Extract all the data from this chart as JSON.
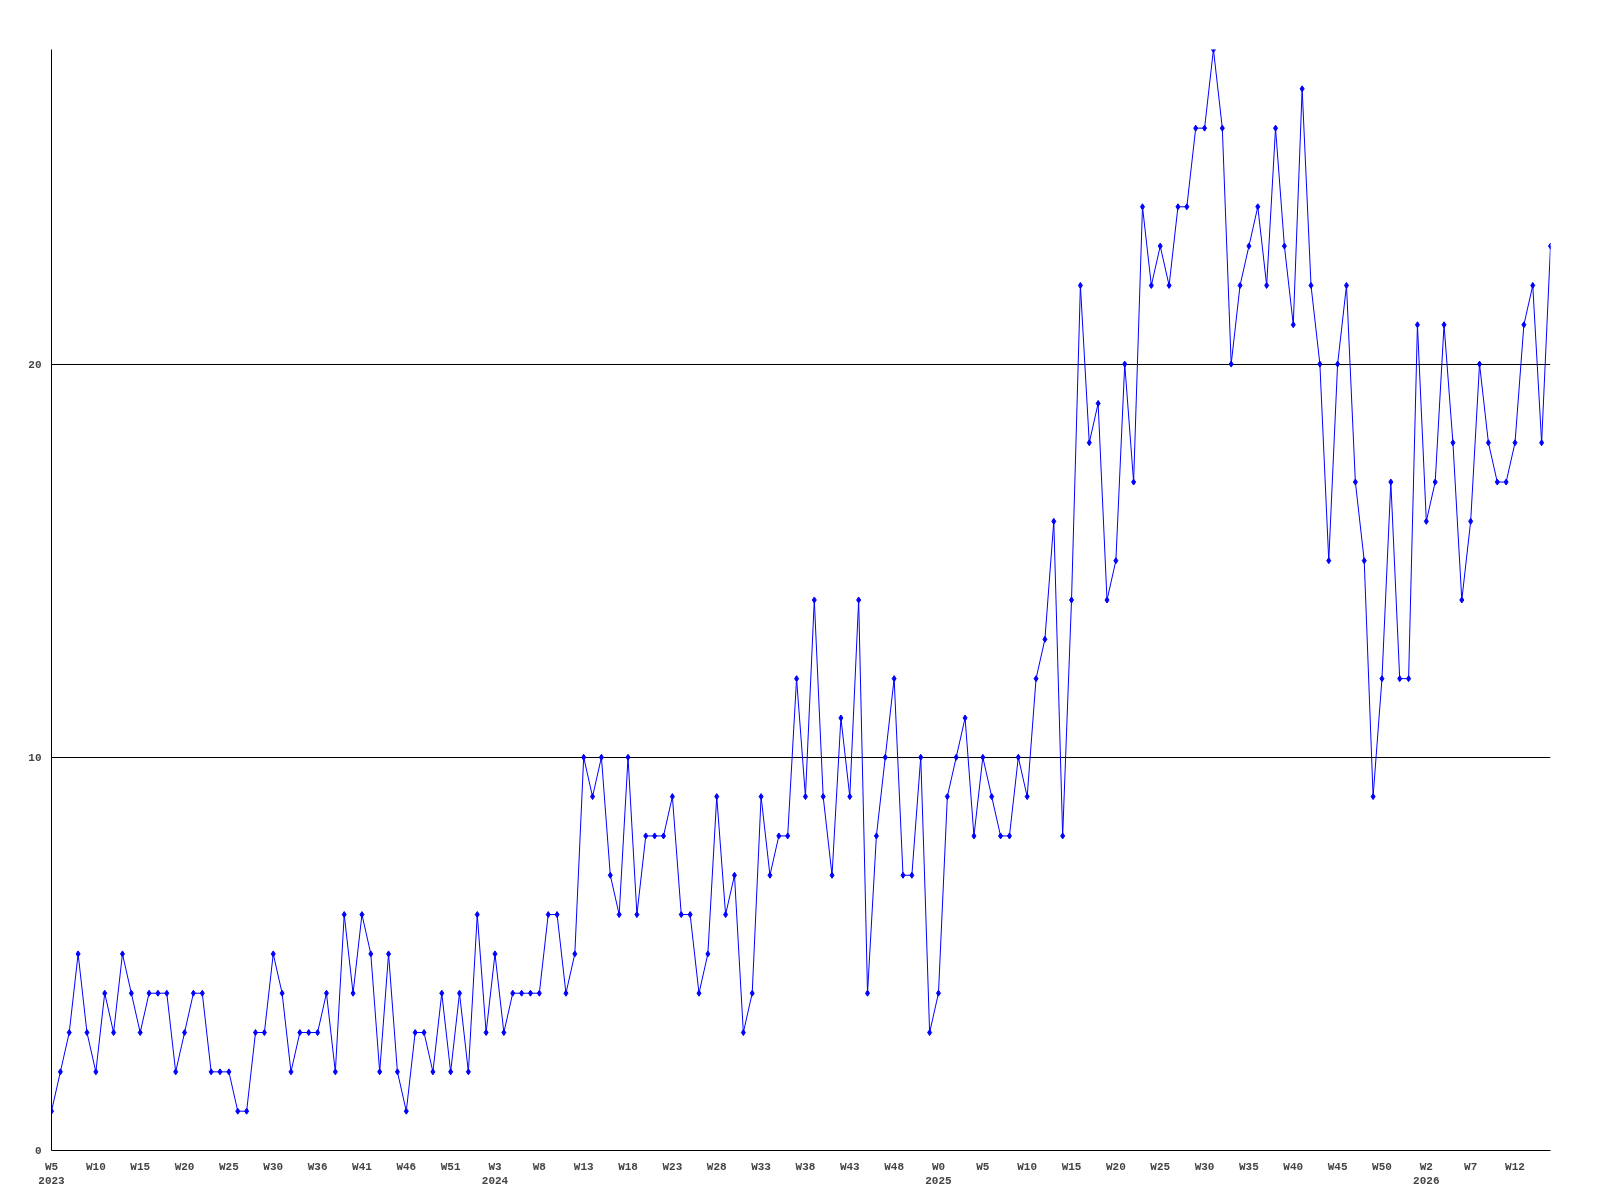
{
  "chart_data": {
    "type": "line",
    "categories": [
      "W5\n2023",
      null,
      null,
      null,
      null,
      "W10",
      null,
      null,
      null,
      null,
      "W15",
      null,
      null,
      null,
      null,
      "W20",
      null,
      null,
      null,
      null,
      "W25",
      null,
      null,
      null,
      null,
      "W30",
      null,
      null,
      null,
      null,
      "W36",
      null,
      null,
      null,
      null,
      "W41",
      null,
      null,
      null,
      null,
      "W46",
      null,
      null,
      null,
      null,
      "W51",
      null,
      null,
      null,
      null,
      "W3\n2024",
      null,
      null,
      null,
      null,
      "W8",
      null,
      null,
      null,
      null,
      "W13",
      null,
      null,
      null,
      null,
      "W18",
      null,
      null,
      null,
      null,
      "W23",
      null,
      null,
      null,
      null,
      "W28",
      null,
      null,
      null,
      null,
      "W33",
      null,
      null,
      null,
      null,
      "W38",
      null,
      null,
      null,
      null,
      "W43",
      null,
      null,
      null,
      null,
      "W48",
      null,
      null,
      null,
      null,
      "W0\n2025",
      null,
      null,
      null,
      null,
      "W5",
      null,
      null,
      null,
      null,
      "W10",
      null,
      null,
      null,
      null,
      "W15",
      null,
      null,
      null,
      null,
      "W20",
      null,
      null,
      null,
      null,
      "W25",
      null,
      null,
      null,
      null,
      "W30",
      null,
      null,
      null,
      null,
      "W35",
      null,
      null,
      null,
      null,
      "W40",
      null,
      null,
      null,
      null,
      "W45",
      null,
      null,
      null,
      null,
      "W50",
      null,
      null,
      null,
      null,
      "W2\n2026",
      null,
      null,
      null,
      null,
      "W7",
      null,
      null,
      null,
      null,
      "W12",
      null,
      null,
      null,
      null
    ],
    "series": [
      {
        "color": "#0000ff",
        "values": [
          1,
          2,
          3,
          5,
          3,
          2,
          4,
          3,
          5,
          4,
          3,
          4,
          4,
          4,
          2,
          3,
          4,
          4,
          2,
          2,
          2,
          1,
          1,
          3,
          3,
          5,
          4,
          2,
          3,
          3,
          3,
          4,
          2,
          6,
          4,
          6,
          5,
          2,
          5,
          2,
          1,
          3,
          3,
          2,
          4,
          2,
          4,
          2,
          6,
          3,
          5,
          3,
          4,
          4,
          4,
          4,
          6,
          6,
          4,
          5,
          10,
          9,
          10,
          7,
          6,
          10,
          6,
          8,
          8,
          8,
          9,
          6,
          6,
          4,
          5,
          9,
          6,
          7,
          3,
          4,
          9,
          7,
          8,
          8,
          12,
          9,
          14,
          9,
          7,
          11,
          9,
          14,
          4,
          8,
          10,
          12,
          7,
          7,
          10,
          3,
          4,
          9,
          10,
          11,
          8,
          10,
          9,
          8,
          8,
          10,
          9,
          12,
          13,
          16,
          8,
          14,
          22,
          18,
          19,
          14,
          15,
          20,
          17,
          24,
          22,
          23,
          22,
          24,
          24,
          26,
          26,
          28,
          26,
          20,
          22,
          23,
          24,
          22,
          26,
          23,
          21,
          27,
          22,
          20,
          15,
          20,
          22,
          17,
          15,
          9,
          12,
          17,
          12,
          12,
          21,
          16,
          17,
          21,
          18,
          14,
          16,
          20,
          18,
          17,
          17,
          18,
          21,
          22,
          18,
          23
        ]
      }
    ],
    "ylim": [
      0,
      28
    ],
    "yticks": [
      0,
      10,
      20
    ],
    "grid": "y",
    "marker": "diamond",
    "line_style": "solid"
  }
}
